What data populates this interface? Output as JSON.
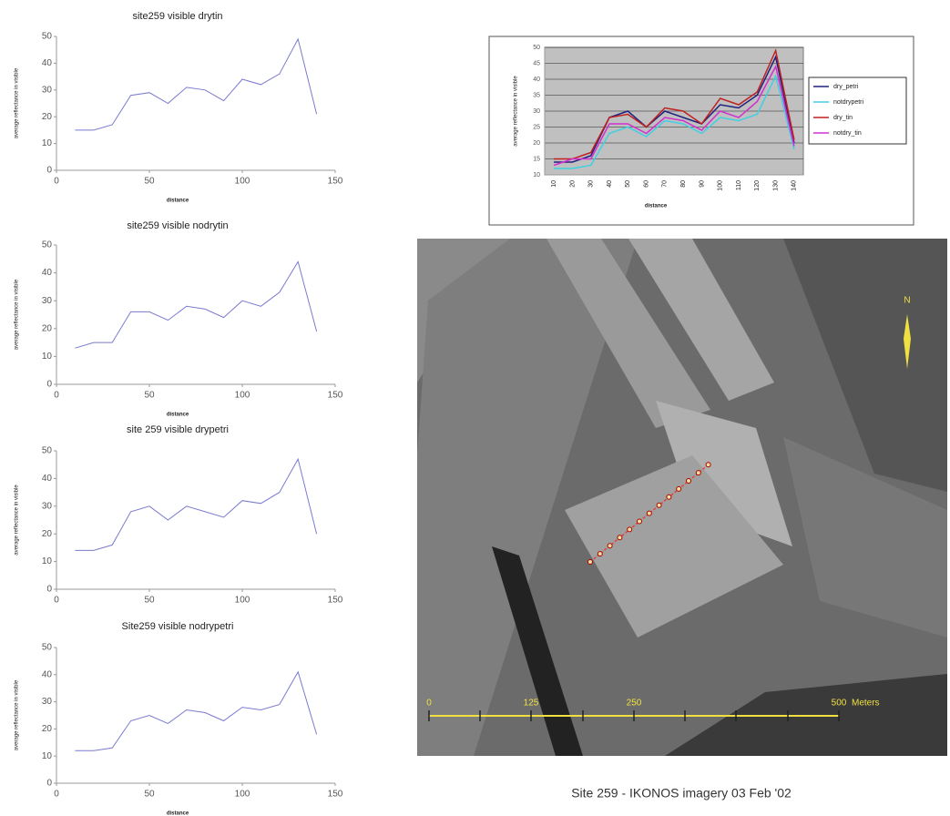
{
  "chart_data": [
    {
      "type": "line",
      "title": "site259 visible drytin",
      "x_label": "distance",
      "y_label": "average reflectance in visible",
      "x": [
        10,
        20,
        30,
        40,
        50,
        60,
        70,
        80,
        90,
        100,
        110,
        120,
        130,
        140
      ],
      "values": [
        15,
        15,
        17,
        28,
        29,
        25,
        31,
        30,
        26,
        34,
        32,
        36,
        49,
        21
      ],
      "color": "#7a7ad0",
      "xlim": [
        0,
        150
      ],
      "xticks": [
        0,
        50,
        100,
        150
      ],
      "ylim": [
        0,
        50
      ],
      "yticks": [
        0,
        10,
        20,
        30,
        40,
        50
      ],
      "grid": false
    },
    {
      "type": "line",
      "title": "site259 visible nodrytin",
      "x_label": "distance",
      "y_label": "average reflectance in visible",
      "x": [
        10,
        20,
        30,
        40,
        50,
        60,
        70,
        80,
        90,
        100,
        110,
        120,
        130,
        140
      ],
      "values": [
        13,
        15,
        15,
        26,
        26,
        23,
        28,
        27,
        24,
        30,
        28,
        33,
        44,
        19
      ],
      "color": "#7a7ad0",
      "xlim": [
        0,
        150
      ],
      "xticks": [
        0,
        50,
        100,
        150
      ],
      "ylim": [
        0,
        50
      ],
      "yticks": [
        0,
        10,
        20,
        30,
        40,
        50
      ],
      "grid": false
    },
    {
      "type": "line",
      "title": "site 259 visible drypetri",
      "y_label": "average reflectance in visible",
      "x": [
        10,
        20,
        30,
        40,
        50,
        60,
        70,
        80,
        90,
        100,
        110,
        120,
        130,
        140
      ],
      "values": [
        14,
        14,
        16,
        28,
        30,
        25,
        30,
        28,
        26,
        32,
        31,
        35,
        47,
        20
      ],
      "color": "#7a7ad0",
      "xlim": [
        0,
        150
      ],
      "xticks": [
        0,
        50,
        100,
        150
      ],
      "ylim": [
        0,
        50
      ],
      "yticks": [
        0,
        10,
        20,
        30,
        40,
        50
      ],
      "grid": false
    },
    {
      "type": "line",
      "title": "Site259 visible nodrypetri",
      "x_label": "distance",
      "y_label": "average reflectance in visible",
      "x": [
        10,
        20,
        30,
        40,
        50,
        60,
        70,
        80,
        90,
        100,
        110,
        120,
        130,
        140
      ],
      "values": [
        12,
        12,
        13,
        23,
        25,
        22,
        27,
        26,
        23,
        28,
        27,
        29,
        41,
        18
      ],
      "color": "#7a7ad0",
      "xlim": [
        0,
        150
      ],
      "xticks": [
        0,
        50,
        100,
        150
      ],
      "ylim": [
        0,
        50
      ],
      "yticks": [
        0,
        10,
        20,
        30,
        40,
        50
      ],
      "grid": false
    },
    {
      "type": "line",
      "x_label": "distance",
      "y_label": "average reflectance in visible",
      "categories": [
        "10",
        "20",
        "30",
        "40",
        "50",
        "60",
        "70",
        "80",
        "90",
        "100",
        "110",
        "120",
        "130",
        "140"
      ],
      "series": [
        {
          "name": "dry_petri",
          "color": "#202080",
          "values": [
            14,
            14,
            16,
            28,
            30,
            25,
            30,
            28,
            26,
            32,
            31,
            35,
            47,
            20
          ]
        },
        {
          "name": "notdrypetri",
          "color": "#40d0e0",
          "values": [
            12,
            12,
            13,
            23,
            25,
            22,
            27,
            26,
            23,
            28,
            27,
            29,
            41,
            18
          ]
        },
        {
          "name": "dry_tin",
          "color": "#c02020",
          "values": [
            15,
            15,
            17,
            28,
            29,
            25,
            31,
            30,
            26,
            34,
            32,
            36,
            49,
            21
          ]
        },
        {
          "name": "notdry_tin",
          "color": "#d030d0",
          "values": [
            13,
            15,
            15,
            26,
            26,
            23,
            28,
            27,
            24,
            30,
            28,
            33,
            44,
            19
          ]
        }
      ],
      "ylim": [
        10,
        50
      ],
      "yticks": [
        10,
        15,
        20,
        25,
        30,
        35,
        40,
        45,
        50
      ],
      "grid": true,
      "legend": "right"
    }
  ],
  "image": {
    "north": "N",
    "scale_labels": [
      "0",
      "125",
      "250",
      "500"
    ],
    "scale_unit": "Meters"
  },
  "caption": "Site 259 - IKONOS imagery 03 Feb '02"
}
